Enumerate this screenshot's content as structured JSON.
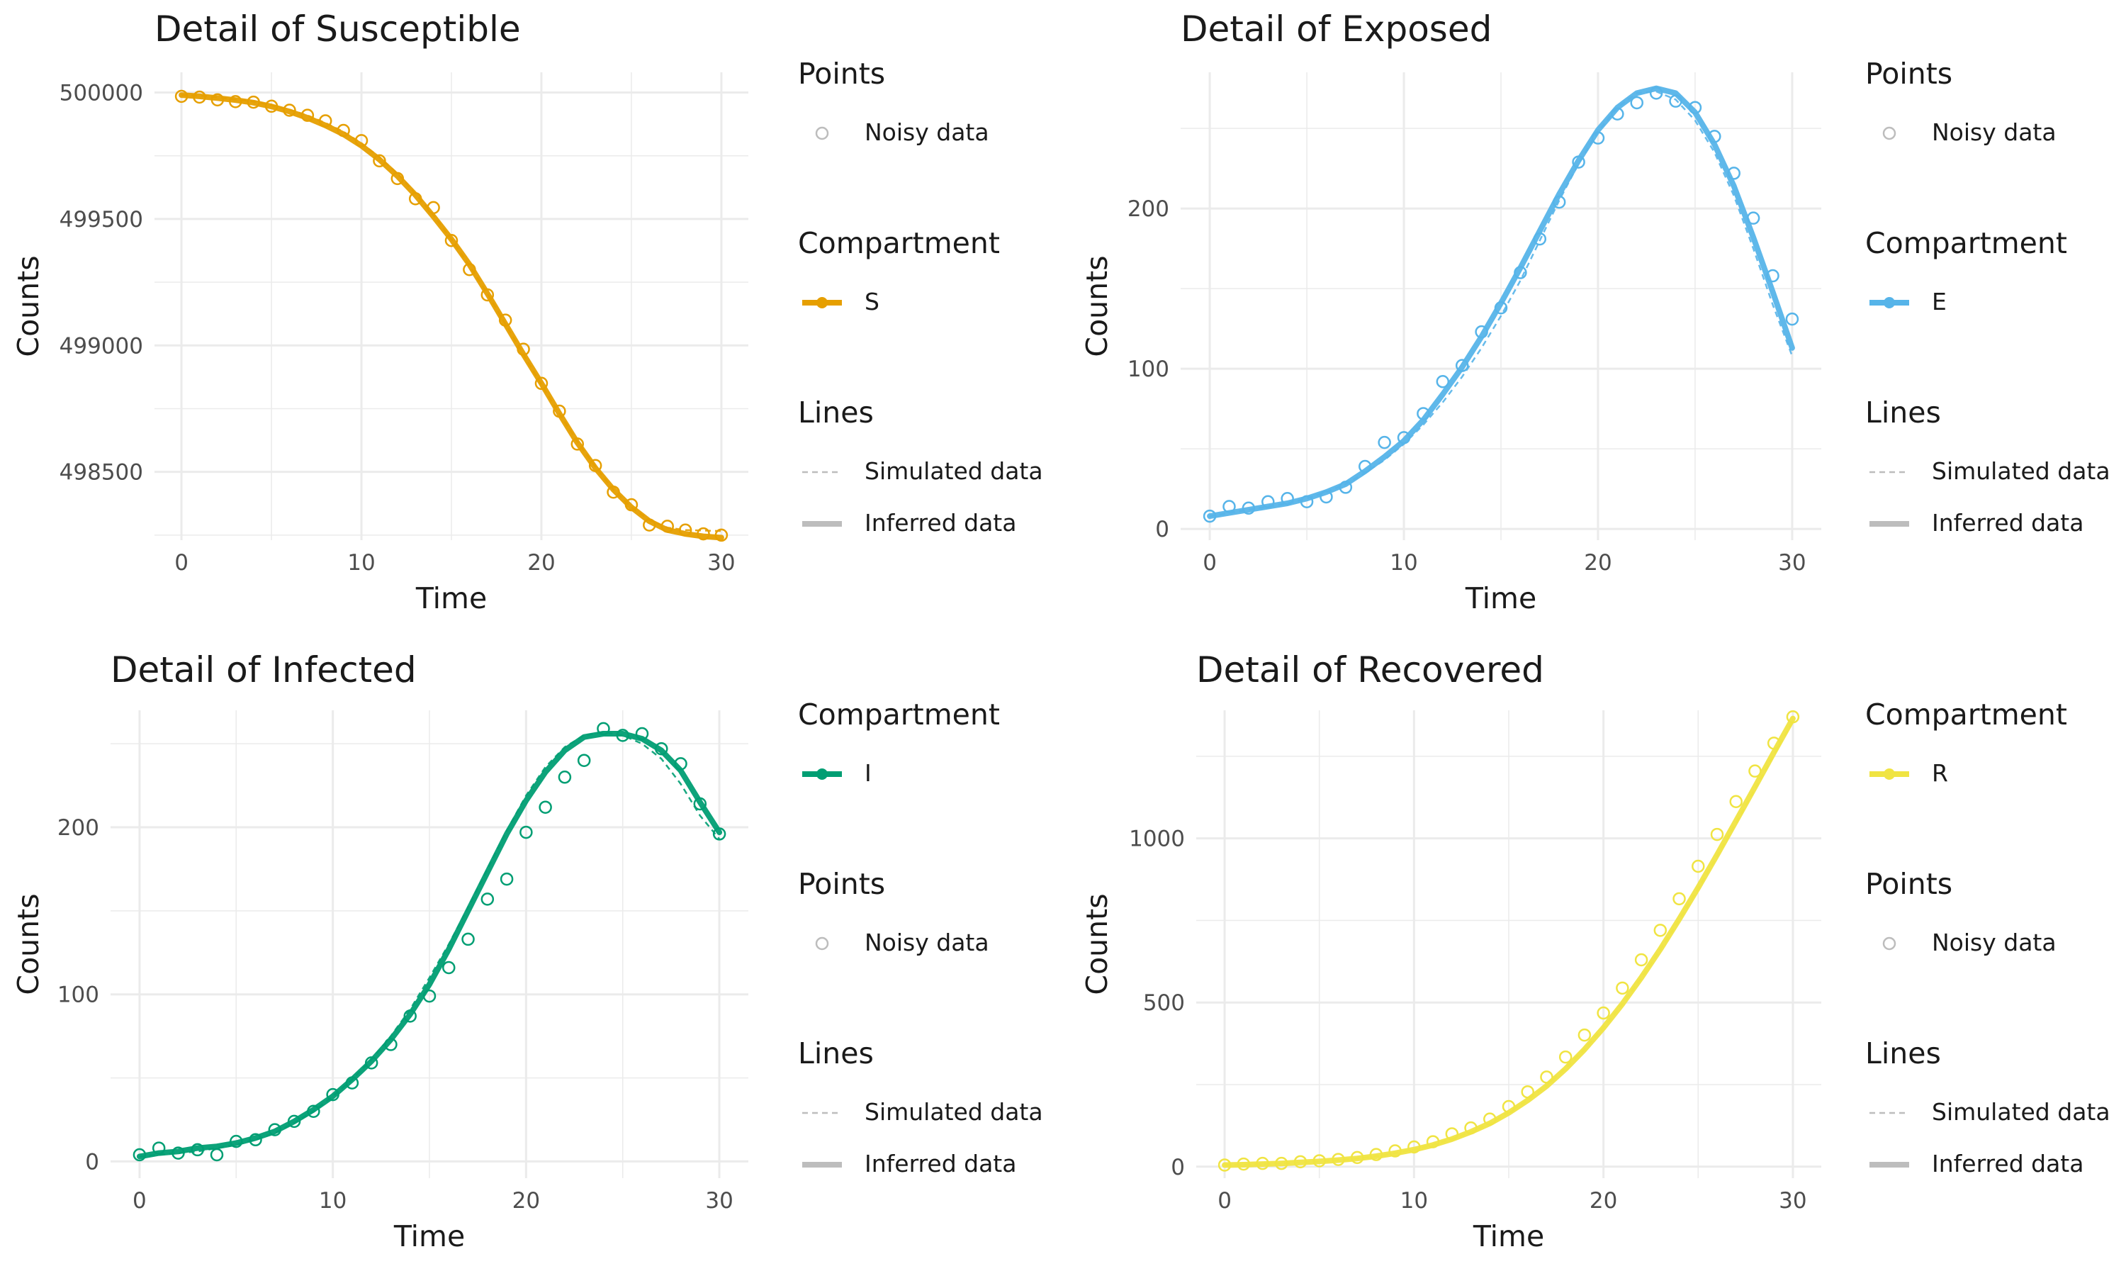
{
  "colors": {
    "S": "#E69F00",
    "E": "#56B4E9",
    "I": "#009E73",
    "R": "#F0E442",
    "grid": "#EBEBEB",
    "legend_grey": "#BDBDBD",
    "tick_text": "#4D4D4D",
    "text": "#1A1A1A"
  },
  "chart_data": [
    {
      "type": "line",
      "title": "Detail of Susceptible",
      "xlabel": "Time",
      "ylabel": "Counts",
      "xlim": [
        -1.5,
        31.5
      ],
      "ylim": [
        498230,
        500080
      ],
      "x_ticks": [
        0,
        10,
        20,
        30
      ],
      "x_tick_labels": [
        "0",
        "10",
        "20",
        "30"
      ],
      "y_ticks": [
        498500,
        499000,
        499500,
        500000
      ],
      "y_tick_labels": [
        "498500",
        "499000",
        "499500",
        "500000"
      ],
      "grid": true,
      "legend_position": "right",
      "legend": [
        {
          "title": "Points",
          "items": [
            {
              "kind": "point",
              "label": "Noisy data"
            }
          ]
        },
        {
          "title": "Compartment",
          "items": [
            {
              "kind": "compartment",
              "label": "S"
            }
          ]
        },
        {
          "title": "Lines",
          "items": [
            {
              "kind": "dashed",
              "label": "Simulated data"
            },
            {
              "kind": "solid",
              "label": "Inferred data"
            }
          ]
        }
      ],
      "compartment": "S",
      "x": [
        0,
        1,
        2,
        3,
        4,
        5,
        6,
        7,
        8,
        9,
        10,
        11,
        12,
        13,
        14,
        15,
        16,
        17,
        18,
        19,
        20,
        21,
        22,
        23,
        24,
        25,
        26,
        27,
        28,
        29,
        30
      ],
      "series": [
        {
          "name": "Simulated data",
          "style": "dashed",
          "values": [
            499990,
            499988,
            499981,
            499973,
            499965,
            499950,
            499932,
            499910,
            499880,
            499845,
            499800,
            499745,
            499680,
            499600,
            499515,
            499420,
            499315,
            499205,
            499085,
            498965,
            498845,
            498730,
            498620,
            498520,
            498430,
            498360,
            498310,
            498280,
            498270,
            498268,
            498266
          ]
        },
        {
          "name": "Inferred data",
          "style": "solid",
          "values": [
            499990,
            499985,
            499978,
            499970,
            499960,
            499945,
            499925,
            499900,
            499870,
            499835,
            499790,
            499735,
            499670,
            499595,
            499510,
            499420,
            499320,
            499205,
            499085,
            498965,
            498850,
            498730,
            498615,
            498515,
            498430,
            498360,
            498305,
            498270,
            498255,
            498245,
            498240
          ]
        },
        {
          "name": "Noisy data",
          "style": "points",
          "values": [
            499985,
            499982,
            499971,
            499964,
            499962,
            499946,
            499930,
            499910,
            499888,
            499850,
            499810,
            499730,
            499660,
            499580,
            499545,
            499415,
            499300,
            499200,
            499100,
            498985,
            498850,
            498740,
            498610,
            498525,
            498420,
            498370,
            498290,
            498285,
            498270,
            498255,
            498250
          ]
        }
      ]
    },
    {
      "type": "line",
      "title": "Detail of Exposed",
      "xlabel": "Time",
      "ylabel": "Counts",
      "xlim": [
        -1.5,
        31.5
      ],
      "ylim": [
        -7,
        285
      ],
      "x_ticks": [
        0,
        10,
        20,
        30
      ],
      "x_tick_labels": [
        "0",
        "10",
        "20",
        "30"
      ],
      "y_ticks": [
        0,
        100,
        200
      ],
      "y_tick_labels": [
        "0",
        "100",
        "200"
      ],
      "grid": true,
      "legend_position": "right",
      "legend": [
        {
          "title": "Points",
          "items": [
            {
              "kind": "point",
              "label": "Noisy data"
            }
          ]
        },
        {
          "title": "Compartment",
          "items": [
            {
              "kind": "compartment",
              "label": "E"
            }
          ]
        },
        {
          "title": "Lines",
          "items": [
            {
              "kind": "dashed",
              "label": "Simulated data"
            },
            {
              "kind": "solid",
              "label": "Inferred data"
            }
          ]
        }
      ],
      "compartment": "E",
      "x": [
        0,
        1,
        2,
        3,
        4,
        5,
        6,
        7,
        8,
        9,
        10,
        11,
        12,
        13,
        14,
        15,
        16,
        17,
        18,
        19,
        20,
        21,
        22,
        23,
        24,
        25,
        26,
        27,
        28,
        29,
        30
      ],
      "series": [
        {
          "name": "Simulated data",
          "style": "dashed",
          "values": [
            8,
            10,
            12,
            14,
            16,
            19,
            23,
            28,
            35,
            43,
            53,
            65,
            79,
            95,
            113,
            133,
            155,
            180,
            205,
            228,
            248,
            263,
            272,
            273,
            268,
            255,
            235,
            208,
            175,
            140,
            108
          ]
        },
        {
          "name": "Inferred data",
          "style": "solid",
          "values": [
            8,
            10,
            12,
            14,
            16,
            19,
            23,
            28,
            36,
            45,
            55,
            68,
            84,
            101,
            120,
            141,
            163,
            186,
            209,
            230,
            249,
            263,
            272,
            275,
            272,
            260,
            240,
            214,
            182,
            148,
            113
          ]
        },
        {
          "name": "Noisy data",
          "style": "points",
          "values": [
            8,
            14,
            13,
            17,
            19,
            17,
            20,
            26,
            39,
            54,
            57,
            72,
            92,
            102,
            123,
            138,
            160,
            181,
            204,
            229,
            244,
            259,
            266,
            272,
            267,
            263,
            245,
            222,
            194,
            158,
            131
          ]
        }
      ]
    },
    {
      "type": "line",
      "title": "Detail of Infected",
      "xlabel": "Time",
      "ylabel": "Counts",
      "xlim": [
        -1.5,
        31.5
      ],
      "ylim": [
        -10,
        270
      ],
      "x_ticks": [
        0,
        10,
        20,
        30
      ],
      "x_tick_labels": [
        "0",
        "10",
        "20",
        "30"
      ],
      "y_ticks": [
        0,
        100,
        200
      ],
      "y_tick_labels": [
        "0",
        "100",
        "200"
      ],
      "grid": true,
      "legend_position": "right",
      "legend": [
        {
          "title": "Compartment",
          "items": [
            {
              "kind": "compartment",
              "label": "I"
            }
          ]
        },
        {
          "title": "Points",
          "items": [
            {
              "kind": "point",
              "label": "Noisy data"
            }
          ]
        },
        {
          "title": "Lines",
          "items": [
            {
              "kind": "dashed",
              "label": "Simulated data"
            },
            {
              "kind": "solid",
              "label": "Inferred data"
            }
          ]
        }
      ],
      "compartment": "I",
      "x": [
        0,
        1,
        2,
        3,
        4,
        5,
        6,
        7,
        8,
        9,
        10,
        11,
        12,
        13,
        14,
        15,
        16,
        17,
        18,
        19,
        20,
        21,
        22,
        23,
        24,
        25,
        26,
        27,
        28,
        29,
        30
      ],
      "series": [
        {
          "name": "Simulated data",
          "style": "dashed",
          "values": [
            3,
            4,
            5,
            6,
            8,
            10,
            13,
            17,
            23,
            30,
            39,
            49,
            61,
            75,
            91,
            110,
            130,
            152,
            175,
            198,
            219,
            236,
            248,
            255,
            257,
            255,
            250,
            241,
            226,
            207,
            193
          ]
        },
        {
          "name": "Inferred data",
          "style": "solid",
          "values": [
            3,
            5,
            6,
            8,
            9,
            11,
            14,
            18,
            24,
            31,
            39,
            49,
            60,
            73,
            88,
            106,
            127,
            150,
            173,
            196,
            216,
            233,
            246,
            254,
            256,
            256,
            253,
            246,
            234,
            215,
            197
          ]
        },
        {
          "name": "Noisy data",
          "style": "points",
          "values": [
            4,
            8,
            5,
            7,
            4,
            12,
            13,
            19,
            24,
            30,
            40,
            47,
            59,
            70,
            87,
            99,
            116,
            133,
            157,
            169,
            197,
            212,
            230,
            240,
            259,
            255,
            256,
            247,
            238,
            214,
            196
          ]
        }
      ]
    },
    {
      "type": "line",
      "title": "Detail of Recovered",
      "xlabel": "Time",
      "ylabel": "Counts",
      "xlim": [
        -1.5,
        31.5
      ],
      "ylim": [
        -35,
        1390
      ],
      "x_ticks": [
        0,
        10,
        20,
        30
      ],
      "x_tick_labels": [
        "0",
        "10",
        "20",
        "30"
      ],
      "y_ticks": [
        0,
        500,
        1000
      ],
      "y_tick_labels": [
        "0",
        "500",
        "1000"
      ],
      "grid": true,
      "legend_position": "right",
      "legend": [
        {
          "title": "Compartment",
          "items": [
            {
              "kind": "compartment",
              "label": "R"
            }
          ]
        },
        {
          "title": "Points",
          "items": [
            {
              "kind": "point",
              "label": "Noisy data"
            }
          ]
        },
        {
          "title": "Lines",
          "items": [
            {
              "kind": "dashed",
              "label": "Simulated data"
            },
            {
              "kind": "solid",
              "label": "Inferred data"
            }
          ]
        }
      ],
      "compartment": "R",
      "x": [
        0,
        1,
        2,
        3,
        4,
        5,
        6,
        7,
        8,
        9,
        10,
        11,
        12,
        13,
        14,
        15,
        16,
        17,
        18,
        19,
        20,
        21,
        22,
        23,
        24,
        25,
        26,
        27,
        28,
        29,
        30
      ],
      "series": [
        {
          "name": "Simulated data",
          "style": "dashed",
          "values": [
            5,
            6,
            8,
            10,
            13,
            16,
            20,
            25,
            32,
            41,
            52,
            66,
            84,
            106,
            132,
            165,
            203,
            248,
            300,
            358,
            424,
            496,
            575,
            661,
            752,
            847,
            946,
            1047,
            1151,
            1254,
            1357
          ]
        },
        {
          "name": "Inferred data",
          "style": "solid",
          "values": [
            5,
            6,
            8,
            10,
            13,
            16,
            20,
            25,
            32,
            41,
            52,
            66,
            84,
            106,
            132,
            164,
            202,
            246,
            298,
            357,
            423,
            496,
            576,
            662,
            754,
            850,
            950,
            1053,
            1157,
            1262,
            1365
          ]
        },
        {
          "name": "Noisy data",
          "style": "points",
          "values": [
            5,
            8,
            10,
            10,
            15,
            18,
            22,
            28,
            37,
            48,
            60,
            76,
            100,
            118,
            145,
            183,
            228,
            273,
            334,
            401,
            468,
            544,
            630,
            720,
            816,
            915,
            1012,
            1112,
            1205,
            1290,
            1370
          ]
        }
      ]
    }
  ]
}
